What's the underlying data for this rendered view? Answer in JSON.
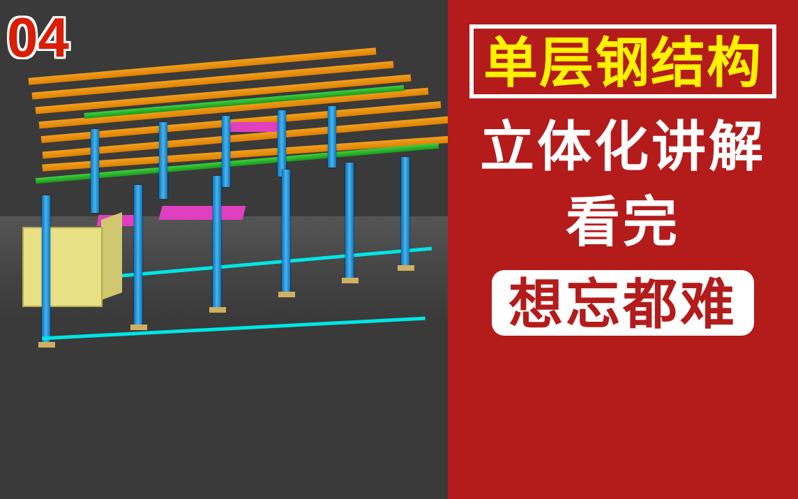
{
  "badge": {
    "number": "04"
  },
  "panel": {
    "background_color": "#b41b1b",
    "text_color": "#ffffff",
    "accent_color": "#fff200",
    "highlight_bg": "#ffffff",
    "highlight_text": "#b41b1b",
    "border_color": "#ffffff",
    "title": "单层钢结构",
    "line1": "立体化讲解",
    "line2": "看完",
    "tag": "想忘都难"
  },
  "viewport": {
    "background_color": "#3a3a3a",
    "colors": {
      "column": "#0077c8",
      "roof_beam": "#e08000",
      "tie_beam": "#1a9a1a",
      "brace": "#00e5e5",
      "panel_accent": "#e040c0",
      "block": "#e8e085",
      "base": "#d0b060"
    },
    "type": "3d-steel-structure"
  },
  "typography": {
    "badge_fontsize": 80,
    "panel_fontsize": 78,
    "font_weight": 900
  }
}
